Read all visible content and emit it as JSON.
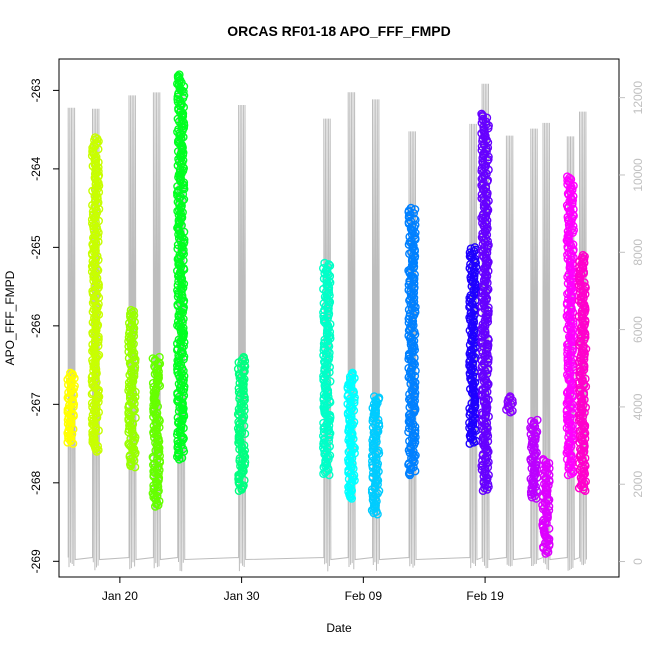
{
  "chart_data": {
    "type": "scatter",
    "title": "ORCAS RF01-18 APO_FFF_FMPD",
    "xlabel": "Date",
    "ylabel": "APO_FFF_FMPD",
    "xlim": [
      "2016-01-15",
      "2016-03-01"
    ],
    "ylim": [
      -269.2,
      -262.6
    ],
    "y2lim": [
      -400,
      13000
    ],
    "x_ticks": [
      {
        "date": "2016-01-20",
        "label": "Jan 20"
      },
      {
        "date": "2016-01-30",
        "label": "Jan 30"
      },
      {
        "date": "2016-02-09",
        "label": "Feb 09"
      },
      {
        "date": "2016-02-19",
        "label": "Feb 19"
      }
    ],
    "y_ticks": [
      -263,
      -264,
      -265,
      -266,
      -267,
      -268,
      -269
    ],
    "y2_ticks": [
      0,
      2000,
      4000,
      6000,
      8000,
      10000,
      12000
    ],
    "grid": false,
    "marker": "open-circle",
    "secondary_series": "altitude trace (grey line, right axis)",
    "series": [
      {
        "date": "2016-01-16",
        "y_min": -267.5,
        "y_max": -266.6,
        "color": "#FFFF00"
      },
      {
        "date": "2016-01-18",
        "y_min": -267.6,
        "y_max": -263.6,
        "color": "#C8FF00"
      },
      {
        "date": "2016-01-21",
        "y_min": -267.8,
        "y_max": -265.8,
        "color": "#99FF00"
      },
      {
        "date": "2016-01-23",
        "y_min": -268.3,
        "y_max": -266.4,
        "color": "#66FF00"
      },
      {
        "date": "2016-01-25",
        "y_min": -267.7,
        "y_max": -262.8,
        "color": "#00FF20"
      },
      {
        "date": "2016-01-30",
        "y_min": -268.1,
        "y_max": -266.4,
        "color": "#00FF80"
      },
      {
        "date": "2016-02-06",
        "y_min": -267.9,
        "y_max": -265.2,
        "color": "#00FFC8"
      },
      {
        "date": "2016-02-08",
        "y_min": -268.2,
        "y_max": -266.6,
        "color": "#00FFFF"
      },
      {
        "date": "2016-02-10",
        "y_min": -268.4,
        "y_max": -266.9,
        "color": "#00CCFF"
      },
      {
        "date": "2016-02-13",
        "y_min": -267.9,
        "y_max": -264.5,
        "color": "#0080FF"
      },
      {
        "date": "2016-02-18",
        "y_min": -267.5,
        "y_max": -265.0,
        "color": "#1E00FF"
      },
      {
        "date": "2016-02-19",
        "y_min": -268.1,
        "y_max": -263.3,
        "color": "#6600FF"
      },
      {
        "date": "2016-02-21",
        "y_min": -267.1,
        "y_max": -266.9,
        "color": "#8800FF"
      },
      {
        "date": "2016-02-23",
        "y_min": -268.2,
        "y_max": -267.2,
        "color": "#BB00FF"
      },
      {
        "date": "2016-02-24",
        "y_min": -268.9,
        "y_max": -267.7,
        "color": "#DD00FF"
      },
      {
        "date": "2016-02-26",
        "y_min": -267.9,
        "y_max": -264.1,
        "color": "#FF00FF"
      },
      {
        "date": "2016-02-27",
        "y_min": -268.1,
        "y_max": -265.1,
        "color": "#FF00CC"
      }
    ]
  }
}
